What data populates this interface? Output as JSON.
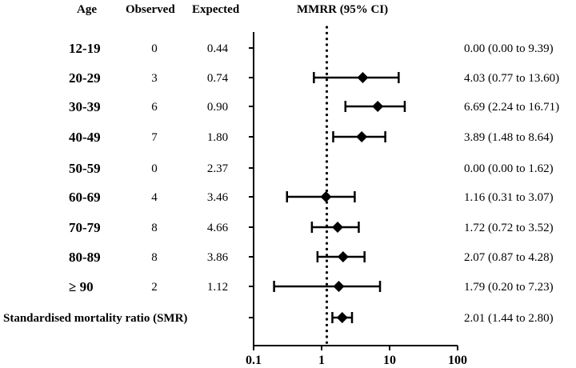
{
  "chart_data": {
    "type": "forest",
    "title": "MMRR (95% CI)",
    "columns": {
      "age": "Age",
      "observed": "Observed",
      "expected": "Expected"
    },
    "x_scale": "log",
    "xlim": [
      0.1,
      100
    ],
    "x_ticks": [
      0.1,
      1,
      10,
      100
    ],
    "x_tick_labels": [
      "0.1",
      "1",
      "10",
      "100"
    ],
    "reference_line": 1,
    "rows": [
      {
        "age": "12-19",
        "observed": "0",
        "expected": "0.44",
        "estimate": 0.0,
        "lower": 0.0,
        "upper": 9.39,
        "ci_label": "0.00 (0.00 to 9.39)"
      },
      {
        "age": "20-29",
        "observed": "3",
        "expected": "0.74",
        "estimate": 4.03,
        "lower": 0.77,
        "upper": 13.6,
        "ci_label": "4.03 (0.77 to 13.60)"
      },
      {
        "age": "30-39",
        "observed": "6",
        "expected": "0.90",
        "estimate": 6.69,
        "lower": 2.24,
        "upper": 16.71,
        "ci_label": "6.69 (2.24 to 16.71)"
      },
      {
        "age": "40-49",
        "observed": "7",
        "expected": "1.80",
        "estimate": 3.89,
        "lower": 1.48,
        "upper": 8.64,
        "ci_label": "3.89 (1.48 to 8.64)"
      },
      {
        "age": "50-59",
        "observed": "0",
        "expected": "2.37",
        "estimate": 0.0,
        "lower": 0.0,
        "upper": 1.62,
        "ci_label": "0.00 (0.00 to 1.62)"
      },
      {
        "age": "60-69",
        "observed": "4",
        "expected": "3.46",
        "estimate": 1.16,
        "lower": 0.31,
        "upper": 3.07,
        "ci_label": "1.16 (0.31 to 3.07)"
      },
      {
        "age": "70-79",
        "observed": "8",
        "expected": "4.66",
        "estimate": 1.72,
        "lower": 0.72,
        "upper": 3.52,
        "ci_label": "1.72 (0.72 to 3.52)"
      },
      {
        "age": "80-89",
        "observed": "8",
        "expected": "3.86",
        "estimate": 2.07,
        "lower": 0.87,
        "upper": 4.28,
        "ci_label": "2.07 (0.87 to 4.28)"
      },
      {
        "age": "≥ 90",
        "observed": "2",
        "expected": "1.12",
        "estimate": 1.79,
        "lower": 0.2,
        "upper": 7.23,
        "ci_label": "1.79 (0.20 to 7.23)"
      }
    ],
    "summary": {
      "label": "Standardised mortality ratio (SMR)",
      "estimate": 2.01,
      "lower": 1.44,
      "upper": 2.8,
      "ci_label": "2.01 (1.44 to 2.80)"
    }
  }
}
